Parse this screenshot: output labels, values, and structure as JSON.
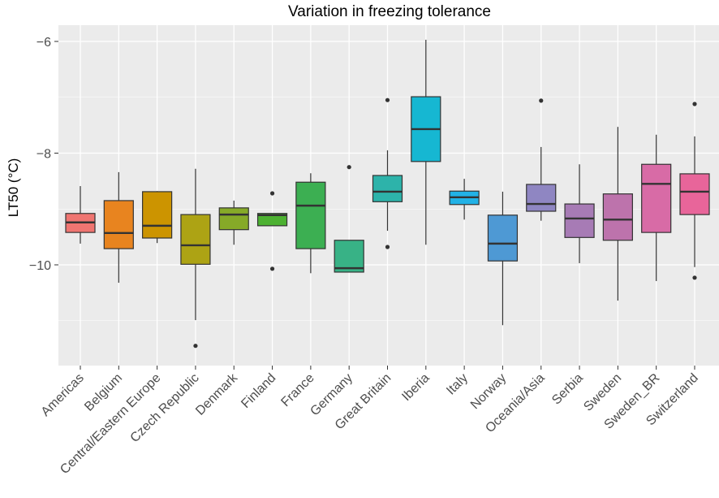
{
  "chart_data": {
    "type": "boxplot",
    "title": "Variation in freezing tolerance",
    "xlabel": "",
    "ylabel": "LT50 (°C)",
    "ylim": [
      -11.8,
      -5.43
    ],
    "yticks": [
      -10,
      -8,
      -6
    ],
    "ytick_labels": [
      "−10",
      "−8",
      "−6"
    ],
    "grid": true,
    "legend": "none",
    "categories": [
      "Americas",
      "Belgium",
      "Central/Eastern Europe",
      "Czech Republic",
      "Denmark",
      "Finland",
      "France",
      "Germany",
      "Great Britain",
      "Iberia",
      "Italy",
      "Norway",
      "Oceania/Asia",
      "Serbia",
      "Sweden",
      "Sweden_BR",
      "Switzerland"
    ],
    "colors": [
      "#ef7571",
      "#e8841f",
      "#cc9400",
      "#ada314",
      "#86aa28",
      "#4cb131",
      "#3caf52",
      "#38b286",
      "#2db3aa",
      "#16b7d2",
      "#22b2e6",
      "#4e99d4",
      "#8f86c2",
      "#a77bb5",
      "#bd73ac",
      "#d86ba6",
      "#e8659a"
    ],
    "boxes": [
      {
        "whisker_low": -9.62,
        "q1": -9.42,
        "median": -9.24,
        "q3": -9.08,
        "whisker_high": -8.59,
        "outliers": []
      },
      {
        "whisker_low": -10.32,
        "q1": -9.71,
        "median": -9.43,
        "q3": -8.85,
        "whisker_high": -8.34,
        "outliers": []
      },
      {
        "whisker_low": -9.61,
        "q1": -9.52,
        "median": -9.3,
        "q3": -8.69,
        "whisker_high": -8.68,
        "outliers": []
      },
      {
        "whisker_low": -10.99,
        "q1": -9.99,
        "median": -9.65,
        "q3": -9.1,
        "whisker_high": -8.28,
        "outliers": [
          -11.45
        ]
      },
      {
        "whisker_low": -9.64,
        "q1": -9.37,
        "median": -9.1,
        "q3": -8.98,
        "whisker_high": -8.85,
        "outliers": []
      },
      {
        "whisker_low": -9.3,
        "q1": -9.3,
        "median": -9.11,
        "q3": -9.08,
        "whisker_high": -9.08,
        "outliers": [
          -8.72,
          -10.07
        ]
      },
      {
        "whisker_low": -10.15,
        "q1": -9.71,
        "median": -8.94,
        "q3": -8.52,
        "whisker_high": -8.36,
        "outliers": []
      },
      {
        "whisker_low": -10.13,
        "q1": -10.13,
        "median": -10.06,
        "q3": -9.56,
        "whisker_high": -9.56,
        "outliers": [
          -8.25
        ]
      },
      {
        "whisker_low": -9.39,
        "q1": -8.87,
        "median": -8.69,
        "q3": -8.4,
        "whisker_high": -7.95,
        "outliers": [
          -7.05,
          -9.68
        ]
      },
      {
        "whisker_low": -9.64,
        "q1": -8.15,
        "median": -7.57,
        "q3": -6.99,
        "whisker_high": -5.97,
        "outliers": []
      },
      {
        "whisker_low": -9.19,
        "q1": -8.92,
        "median": -8.79,
        "q3": -8.68,
        "whisker_high": -8.46,
        "outliers": []
      },
      {
        "whisker_low": -11.08,
        "q1": -9.93,
        "median": -9.62,
        "q3": -9.11,
        "whisker_high": -8.69,
        "outliers": []
      },
      {
        "whisker_low": -9.21,
        "q1": -9.04,
        "median": -8.91,
        "q3": -8.56,
        "whisker_high": -7.89,
        "outliers": [
          -7.06
        ]
      },
      {
        "whisker_low": -9.97,
        "q1": -9.51,
        "median": -9.17,
        "q3": -8.91,
        "whisker_high": -8.2,
        "outliers": []
      },
      {
        "whisker_low": -10.64,
        "q1": -9.56,
        "median": -9.19,
        "q3": -8.73,
        "whisker_high": -7.53,
        "outliers": []
      },
      {
        "whisker_low": -10.29,
        "q1": -9.42,
        "median": -8.55,
        "q3": -8.2,
        "whisker_high": -7.67,
        "outliers": []
      },
      {
        "whisker_low": -10.04,
        "q1": -9.1,
        "median": -8.69,
        "q3": -8.37,
        "whisker_high": -7.7,
        "outliers": [
          -7.12,
          -10.23
        ]
      }
    ]
  }
}
